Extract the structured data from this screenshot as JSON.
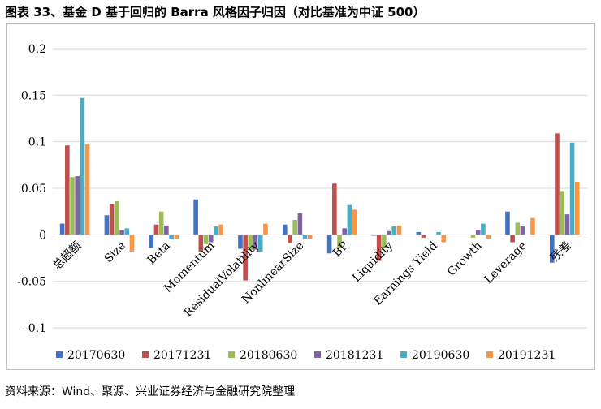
{
  "title": "图表 33、基金 D 基于回归的 Barra 风格因子归因（对比基准为中证 500）",
  "source": "资料来源：Wind、聚源、兴业证券经济与金融研究院整理",
  "chart_data": {
    "type": "bar",
    "title": "",
    "xlabel": "",
    "ylabel": "",
    "ylim": [
      -0.12,
      0.22
    ],
    "yticks": [
      -0.1,
      -0.05,
      0,
      0.05,
      0.1,
      0.15,
      0.2
    ],
    "ytick_labels": [
      "-0.1",
      "-0.05",
      "0",
      "0.05",
      "0.1",
      "0.15",
      "0.2"
    ],
    "grid": true,
    "legend_position": "bottom",
    "categories": [
      "总超额",
      "Size",
      "Beta",
      "Momentum",
      "ResidualVolatility",
      "NonlinearSize",
      "BP",
      "Liquidity",
      "Earnings Yield",
      "Growth",
      "Leverage",
      "残差"
    ],
    "series": [
      {
        "name": "20170630",
        "color": "#4472c4",
        "values": [
          0.012,
          0.021,
          -0.014,
          0.038,
          -0.015,
          0.011,
          -0.02,
          -0.001,
          0.003,
          0.0,
          0.025,
          -0.03
        ]
      },
      {
        "name": "20171231",
        "color": "#c0504d",
        "values": [
          0.096,
          0.033,
          0.011,
          -0.018,
          -0.049,
          -0.009,
          0.055,
          -0.028,
          -0.003,
          0.0,
          -0.008,
          0.109
        ]
      },
      {
        "name": "20180630",
        "color": "#9bbb59",
        "values": [
          0.062,
          0.036,
          0.025,
          -0.01,
          -0.016,
          0.016,
          -0.014,
          -0.014,
          0.0,
          -0.003,
          0.013,
          0.047
        ]
      },
      {
        "name": "20181231",
        "color": "#8064a2",
        "values": [
          0.063,
          0.005,
          0.01,
          -0.008,
          -0.016,
          0.023,
          0.007,
          0.004,
          0.0,
          0.005,
          0.009,
          0.022
        ]
      },
      {
        "name": "20190630",
        "color": "#4bacc6",
        "values": [
          0.147,
          0.007,
          -0.005,
          0.009,
          -0.018,
          -0.004,
          0.032,
          0.009,
          0.003,
          0.012,
          0.0,
          0.099
        ]
      },
      {
        "name": "20191231",
        "color": "#f79646",
        "values": [
          0.097,
          -0.018,
          -0.004,
          0.011,
          0.012,
          -0.004,
          0.027,
          0.01,
          -0.008,
          -0.004,
          0.018,
          0.057
        ]
      }
    ]
  }
}
